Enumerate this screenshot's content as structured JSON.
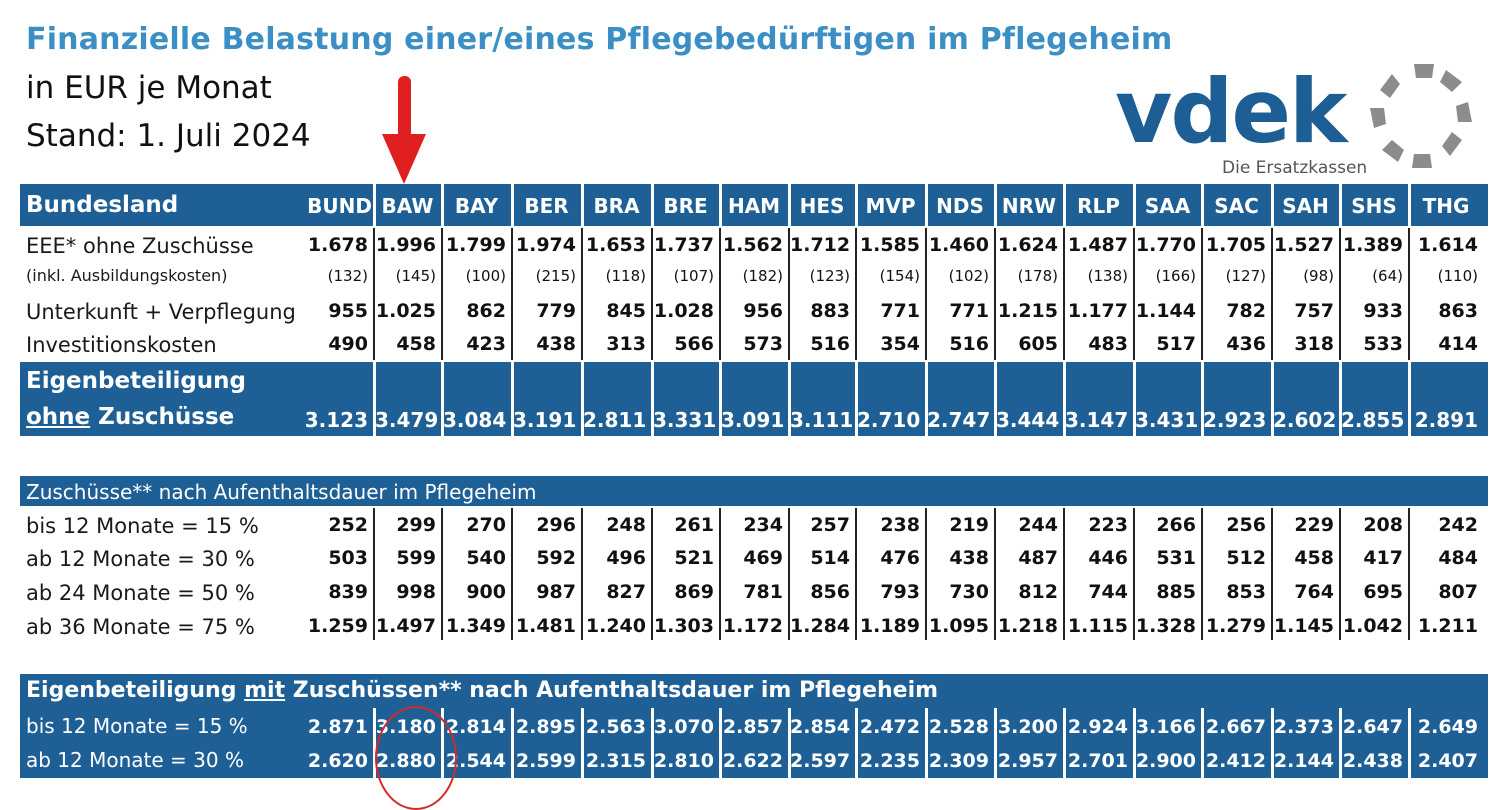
{
  "title": "Finanzielle Belastung einer/eines Pflegebedürftigen im Pflegeheim",
  "subtitle1": "in EUR je Monat",
  "subtitle2": "Stand: 1. Juli 2024",
  "logo": {
    "text": "vdek",
    "tagline": "Die Ersatzkassen"
  },
  "colors": {
    "accent": "#3c8fc4",
    "band": "#1e5f95",
    "highlight": "#d42a2a"
  },
  "header": {
    "label": "Bundesland",
    "states": [
      "BUND",
      "BAW",
      "BAY",
      "BER",
      "BRA",
      "BRE",
      "HAM",
      "HES",
      "MVP",
      "NDS",
      "NRW",
      "RLP",
      "SAA",
      "SAC",
      "SAH",
      "SHS",
      "THG"
    ]
  },
  "rows1": [
    {
      "label": "EEE* ohne Zuschüsse",
      "values": [
        "1.678",
        "1.996",
        "1.799",
        "1.974",
        "1.653",
        "1.737",
        "1.562",
        "1.712",
        "1.585",
        "1.460",
        "1.624",
        "1.487",
        "1.770",
        "1.705",
        "1.527",
        "1.389",
        "1.614"
      ]
    },
    {
      "label": "(inkl. Ausbildungskosten)",
      "small": true,
      "values": [
        "(132)",
        "(145)",
        "(100)",
        "(215)",
        "(118)",
        "(107)",
        "(182)",
        "(123)",
        "(154)",
        "(102)",
        "(178)",
        "(138)",
        "(166)",
        "(127)",
        "(98)",
        "(64)",
        "(110)"
      ]
    },
    {
      "label": "Unterkunft + Verpflegung",
      "values": [
        "955",
        "1.025",
        "862",
        "779",
        "845",
        "1.028",
        "956",
        "883",
        "771",
        "771",
        "1.215",
        "1.177",
        "1.144",
        "782",
        "757",
        "933",
        "863"
      ]
    },
    {
      "label": "Investitionskosten",
      "values": [
        "490",
        "458",
        "423",
        "438",
        "313",
        "566",
        "573",
        "516",
        "354",
        "516",
        "605",
        "483",
        "517",
        "436",
        "318",
        "533",
        "414"
      ]
    }
  ],
  "eigen": {
    "line1": "Eigenbeteiligung",
    "line2_u": "ohne",
    "line2_rest": " Zuschüsse",
    "values": [
      "3.123",
      "3.479",
      "3.084",
      "3.191",
      "2.811",
      "3.331",
      "3.091",
      "3.111",
      "2.710",
      "2.747",
      "3.444",
      "3.147",
      "3.431",
      "2.923",
      "2.602",
      "2.855",
      "2.891"
    ]
  },
  "zuschuss_header": "Zuschüsse** nach Aufenthaltsdauer im Pflegeheim",
  "rows2": [
    {
      "label": "bis 12 Monate = 15 %",
      "values": [
        "252",
        "299",
        "270",
        "296",
        "248",
        "261",
        "234",
        "257",
        "238",
        "219",
        "244",
        "223",
        "266",
        "256",
        "229",
        "208",
        "242"
      ]
    },
    {
      "label": "ab 12 Monate  = 30 %",
      "values": [
        "503",
        "599",
        "540",
        "592",
        "496",
        "521",
        "469",
        "514",
        "476",
        "438",
        "487",
        "446",
        "531",
        "512",
        "458",
        "417",
        "484"
      ]
    },
    {
      "label": "ab 24 Monate  = 50 %",
      "values": [
        "839",
        "998",
        "900",
        "987",
        "827",
        "869",
        "781",
        "856",
        "793",
        "730",
        "812",
        "744",
        "885",
        "853",
        "764",
        "695",
        "807"
      ]
    },
    {
      "label": "ab 36 Monate  = 75 %",
      "values": [
        "1.259",
        "1.497",
        "1.349",
        "1.481",
        "1.240",
        "1.303",
        "1.172",
        "1.284",
        "1.189",
        "1.095",
        "1.218",
        "1.115",
        "1.328",
        "1.279",
        "1.145",
        "1.042",
        "1.211"
      ]
    }
  ],
  "mit": {
    "pre": "Eigenbeteiligung ",
    "u": "mit",
    "post": " Zuschüssen** nach Aufenthaltsdauer im Pflegeheim",
    "rows": [
      {
        "label": "bis 12 Monate = 15 %",
        "values": [
          "2.871",
          "3.180",
          "2.814",
          "2.895",
          "2.563",
          "3.070",
          "2.857",
          "2.854",
          "2.472",
          "2.528",
          "3.200",
          "2.924",
          "3.166",
          "2.667",
          "2.373",
          "2.647",
          "2.649"
        ]
      },
      {
        "label": "ab 12 Monate  = 30 %",
        "values": [
          "2.620",
          "2.880",
          "2.544",
          "2.599",
          "2.315",
          "2.810",
          "2.622",
          "2.597",
          "2.235",
          "2.309",
          "2.957",
          "2.701",
          "2.900",
          "2.412",
          "2.144",
          "2.438",
          "2.407"
        ]
      }
    ]
  }
}
